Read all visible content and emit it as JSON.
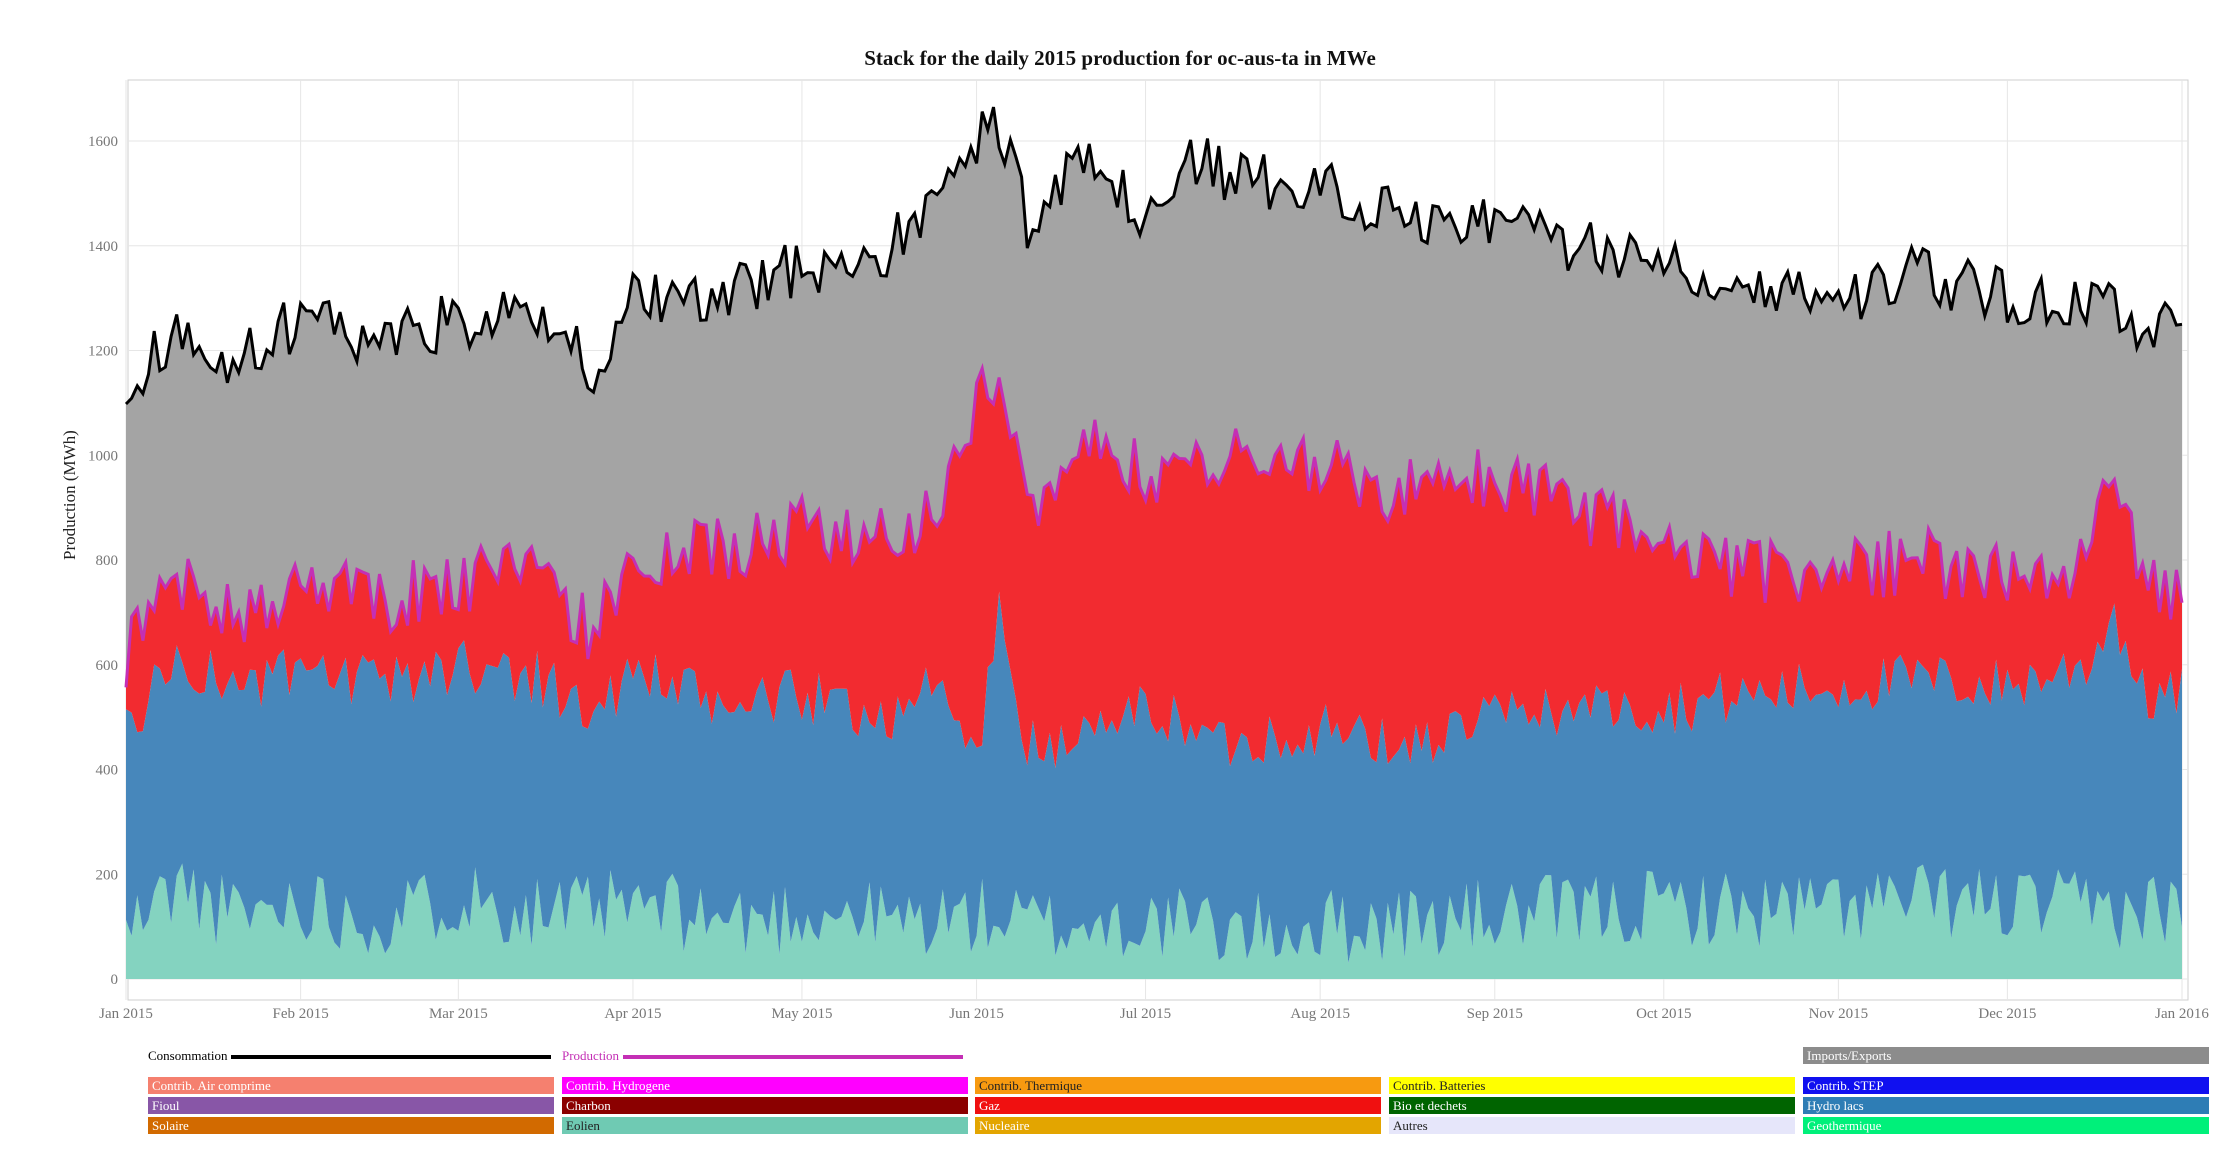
{
  "chart_data": {
    "type": "area",
    "title": "Stack for the daily 2015 production for oc-aus-ta in MWe",
    "xlabel": "",
    "ylabel": "Production (MWh)",
    "x_range": [
      "2015-01-01",
      "2016-01-01"
    ],
    "ylim": [
      0,
      1700
    ],
    "y_ticks": [
      "0",
      "200",
      "400",
      "600",
      "800",
      "1000",
      "1200",
      "1400",
      "1600"
    ],
    "x_ticks": [
      "Jan 2015",
      "Feb 2015",
      "Mar 2015",
      "Apr 2015",
      "May 2015",
      "Jun 2015",
      "Jul 2015",
      "Aug 2015",
      "Sep 2015",
      "Oct 2015",
      "Nov 2015",
      "Dec 2015",
      "Jan 2016"
    ],
    "grid": true,
    "legend_position": "bottom",
    "series": [
      {
        "name": "Eolien",
        "color": "#84d3c0",
        "keypoints": [
          [
            "2015-01-01",
            90
          ],
          [
            "2015-01-10",
            180
          ],
          [
            "2015-01-20",
            120
          ],
          [
            "2015-02-01",
            150
          ],
          [
            "2015-02-15",
            110
          ],
          [
            "2015-03-01",
            160
          ],
          [
            "2015-03-20",
            120
          ],
          [
            "2015-04-01",
            140
          ],
          [
            "2015-04-20",
            110
          ],
          [
            "2015-05-05",
            130
          ],
          [
            "2015-05-20",
            110
          ],
          [
            "2015-06-01",
            120
          ],
          [
            "2015-06-15",
            100
          ],
          [
            "2015-07-01",
            110
          ],
          [
            "2015-07-20",
            90
          ],
          [
            "2015-08-01",
            100
          ],
          [
            "2015-08-20",
            110
          ],
          [
            "2015-09-01",
            120
          ],
          [
            "2015-09-20",
            130
          ],
          [
            "2015-10-01",
            140
          ],
          [
            "2015-10-20",
            130
          ],
          [
            "2015-11-01",
            140
          ],
          [
            "2015-11-20",
            150
          ],
          [
            "2015-12-01",
            140
          ],
          [
            "2015-12-20",
            130
          ],
          [
            "2016-01-01",
            140
          ]
        ]
      },
      {
        "name": "Hydro lacs",
        "color": "#4787bb",
        "keypoints": [
          [
            "2015-01-01",
            480
          ],
          [
            "2015-01-10",
            610
          ],
          [
            "2015-01-20",
            560
          ],
          [
            "2015-02-01",
            580
          ],
          [
            "2015-02-15",
            560
          ],
          [
            "2015-03-01",
            600
          ],
          [
            "2015-03-15",
            580
          ],
          [
            "2015-03-25",
            500
          ],
          [
            "2015-04-01",
            590
          ],
          [
            "2015-04-15",
            520
          ],
          [
            "2015-05-01",
            540
          ],
          [
            "2015-05-15",
            500
          ],
          [
            "2015-05-25",
            560
          ],
          [
            "2015-06-01",
            420
          ],
          [
            "2015-06-05",
            700
          ],
          [
            "2015-06-10",
            440
          ],
          [
            "2015-06-20",
            460
          ],
          [
            "2015-07-01",
            520
          ],
          [
            "2015-07-15",
            450
          ],
          [
            "2015-08-01",
            480
          ],
          [
            "2015-08-15",
            440
          ],
          [
            "2015-09-01",
            500
          ],
          [
            "2015-09-15",
            520
          ],
          [
            "2015-10-01",
            520
          ],
          [
            "2015-10-15",
            540
          ],
          [
            "2015-11-01",
            560
          ],
          [
            "2015-11-15",
            570
          ],
          [
            "2015-12-01",
            560
          ],
          [
            "2015-12-15",
            600
          ],
          [
            "2015-12-20",
            700
          ],
          [
            "2015-12-25",
            540
          ],
          [
            "2016-01-01",
            540
          ]
        ]
      },
      {
        "name": "Gaz",
        "color": "#f22b30",
        "keypoints": [
          [
            "2015-01-01",
            620
          ],
          [
            "2015-01-10",
            780
          ],
          [
            "2015-01-20",
            680
          ],
          [
            "2015-02-01",
            760
          ],
          [
            "2015-02-15",
            720
          ],
          [
            "2015-03-01",
            760
          ],
          [
            "2015-03-15",
            780
          ],
          [
            "2015-03-25",
            660
          ],
          [
            "2015-04-01",
            780
          ],
          [
            "2015-04-15",
            820
          ],
          [
            "2015-05-01",
            860
          ],
          [
            "2015-05-15",
            840
          ],
          [
            "2015-05-25",
            900
          ],
          [
            "2015-06-01",
            1100
          ],
          [
            "2015-06-05",
            1160
          ],
          [
            "2015-06-10",
            900
          ],
          [
            "2015-06-20",
            1050
          ],
          [
            "2015-07-01",
            950
          ],
          [
            "2015-07-15",
            1000
          ],
          [
            "2015-08-01",
            980
          ],
          [
            "2015-08-15",
            930
          ],
          [
            "2015-09-01",
            950
          ],
          [
            "2015-09-15",
            900
          ],
          [
            "2015-10-01",
            820
          ],
          [
            "2015-10-15",
            780
          ],
          [
            "2015-11-01",
            780
          ],
          [
            "2015-11-15",
            800
          ],
          [
            "2015-12-01",
            760
          ],
          [
            "2015-12-15",
            780
          ],
          [
            "2015-12-20",
            990
          ],
          [
            "2015-12-25",
            760
          ],
          [
            "2016-01-01",
            740
          ]
        ]
      },
      {
        "name": "Imports/Exports",
        "color": "#a4a4a4",
        "keypoints": [
          [
            "2015-01-01",
            1130
          ],
          [
            "2015-01-10",
            1230
          ],
          [
            "2015-01-20",
            1180
          ],
          [
            "2015-02-01",
            1260
          ],
          [
            "2015-02-15",
            1220
          ],
          [
            "2015-03-01",
            1260
          ],
          [
            "2015-03-15",
            1260
          ],
          [
            "2015-03-25",
            1170
          ],
          [
            "2015-04-01",
            1300
          ],
          [
            "2015-04-15",
            1290
          ],
          [
            "2015-05-01",
            1360
          ],
          [
            "2015-05-15",
            1380
          ],
          [
            "2015-05-25",
            1480
          ],
          [
            "2015-06-01",
            1600
          ],
          [
            "2015-06-05",
            1640
          ],
          [
            "2015-06-10",
            1450
          ],
          [
            "2015-06-20",
            1560
          ],
          [
            "2015-07-01",
            1450
          ],
          [
            "2015-07-10",
            1560
          ],
          [
            "2015-07-20",
            1520
          ],
          [
            "2015-08-01",
            1520
          ],
          [
            "2015-08-15",
            1460
          ],
          [
            "2015-09-01",
            1450
          ],
          [
            "2015-09-15",
            1400
          ],
          [
            "2015-10-01",
            1380
          ],
          [
            "2015-10-15",
            1330
          ],
          [
            "2015-11-01",
            1300
          ],
          [
            "2015-11-15",
            1350
          ],
          [
            "2015-12-01",
            1300
          ],
          [
            "2015-12-15",
            1290
          ],
          [
            "2016-01-01",
            1230
          ]
        ]
      }
    ],
    "consommation": {
      "name": "Consommation",
      "color": "#000000"
    },
    "production": {
      "name": "Production",
      "color": "#c42fb5"
    }
  },
  "legend": {
    "line_items": [
      {
        "label": "Consommation",
        "color": "#000000"
      },
      {
        "label": "Production",
        "color": "#c42fb5"
      }
    ],
    "items": [
      {
        "label": "Imports/Exports",
        "bg": "#8c8c8c",
        "fg": "#ffffff"
      },
      {
        "label": "Contrib. Air comprime",
        "bg": "#f5806f",
        "fg": "#ffffff"
      },
      {
        "label": "Contrib. Hydrogene",
        "bg": "#ff00ff",
        "fg": "#ffffff"
      },
      {
        "label": "Contrib. Thermique",
        "bg": "#f79a10",
        "fg": "#222222"
      },
      {
        "label": "Contrib. Batteries",
        "bg": "#ffff00",
        "fg": "#222222"
      },
      {
        "label": "Contrib. STEP",
        "bg": "#1010f0",
        "fg": "#ffffff"
      },
      {
        "label": "Fioul",
        "bg": "#8856a7",
        "fg": "#ffffff"
      },
      {
        "label": "Charbon",
        "bg": "#8b0000",
        "fg": "#ffffff"
      },
      {
        "label": "Gaz",
        "bg": "#f01010",
        "fg": "#ffffff"
      },
      {
        "label": "Bio et dechets",
        "bg": "#006400",
        "fg": "#ffffff"
      },
      {
        "label": "Hydro lacs",
        "bg": "#2e7db5",
        "fg": "#ffffff"
      },
      {
        "label": "Solaire",
        "bg": "#d26a00",
        "fg": "#ffffff"
      },
      {
        "label": "Eolien",
        "bg": "#6fcab3",
        "fg": "#222222"
      },
      {
        "label": "Nucleaire",
        "bg": "#e3a500",
        "fg": "#ffffff"
      },
      {
        "label": "Autres",
        "bg": "#e6e6fa",
        "fg": "#222222"
      },
      {
        "label": "Geothermique",
        "bg": "#00f07a",
        "fg": "#ffffff"
      }
    ]
  }
}
